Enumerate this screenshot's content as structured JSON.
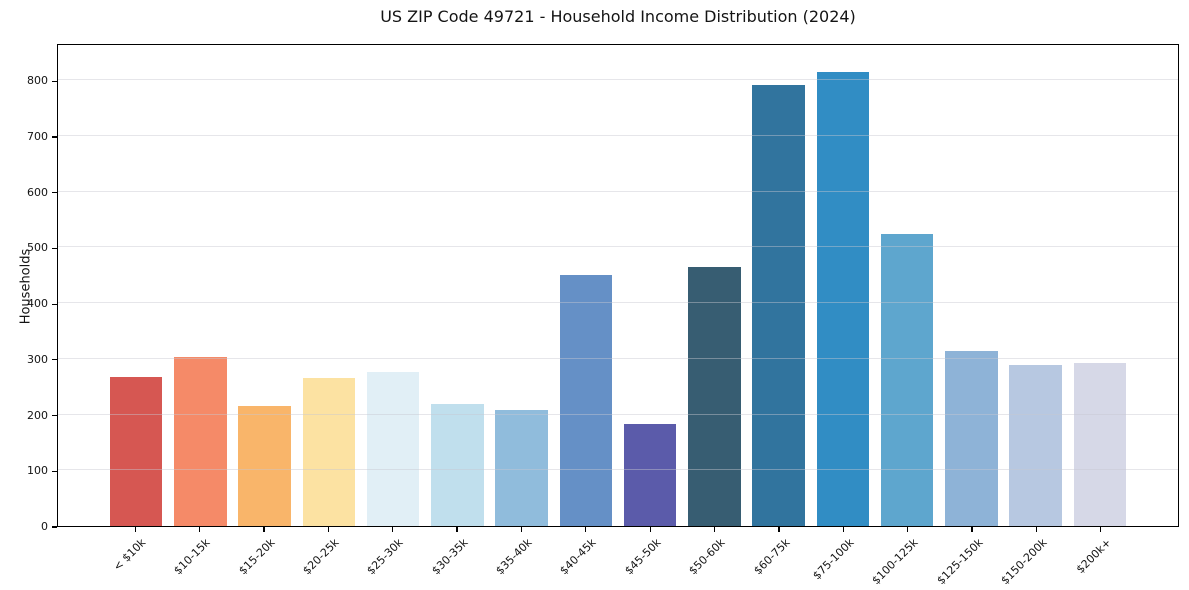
{
  "chart_data": {
    "type": "bar",
    "title": "US ZIP Code 49721 - Household Income Distribution (2024)",
    "xlabel": "",
    "ylabel": "Households",
    "categories": [
      "< $10k",
      "$10-15k",
      "$15-20k",
      "$20-25k",
      "$25-30k",
      "$30-35k",
      "$35-40k",
      "$40-45k",
      "$45-50k",
      "$50-60k",
      "$60-75k",
      "$75-100k",
      "$100-125k",
      "$125-150k",
      "$150-200k",
      "$200k+"
    ],
    "values": [
      268,
      305,
      216,
      266,
      278,
      220,
      210,
      453,
      183,
      467,
      795,
      818,
      526,
      315,
      291,
      293
    ],
    "bar_colors": [
      "#d65752",
      "#f58a68",
      "#f9b56a",
      "#fce2a2",
      "#e1eff6",
      "#c0dfed",
      "#90bcdc",
      "#6590c6",
      "#5b5baa",
      "#375d72",
      "#31749e",
      "#318dc4",
      "#5ea6ce",
      "#8eb3d7",
      "#b7c8e1",
      "#d6d8e7"
    ],
    "yticks": [
      0,
      100,
      200,
      300,
      400,
      500,
      600,
      700,
      800
    ],
    "ylim": [
      0,
      867
    ],
    "grid": "horizontal",
    "legend": "none",
    "background": "#ffffff",
    "grid_color": "#e9e9ee",
    "spine_color": "#000000"
  }
}
